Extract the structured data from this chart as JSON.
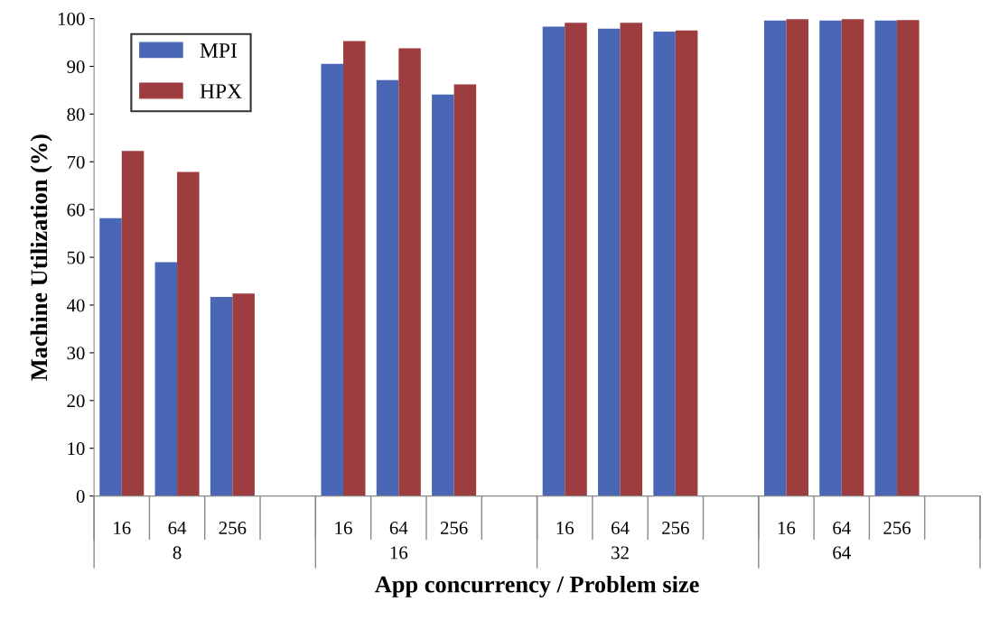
{
  "chart_data": {
    "type": "bar",
    "ylabel": "Machine Utilization (%)",
    "xlabel": "App concurrency / Problem size",
    "categories": [
      "16",
      "64",
      "256",
      null,
      "16",
      "64",
      "256",
      null,
      "16",
      "64",
      "256",
      null,
      "16",
      "64",
      "256",
      null
    ],
    "series": [
      {
        "name": "MPI",
        "color": "#4a67b5",
        "values": [
          58.2,
          49,
          41.7,
          null,
          90.5,
          87.1,
          84.1,
          null,
          98.3,
          97.9,
          97.3,
          null,
          99.6,
          99.6,
          99.6,
          null
        ]
      },
      {
        "name": "HPX",
        "color": "#9e3d3f",
        "values": [
          72.3,
          67.9,
          42.4,
          null,
          95.3,
          93.8,
          86.2,
          null,
          99.1,
          99.1,
          97.5,
          null,
          99.9,
          99.9,
          99.7,
          null
        ]
      }
    ],
    "annotations": [
      "8",
      "16",
      "32",
      "64"
    ],
    "ylim": [
      0,
      100
    ],
    "yticks": [
      0,
      10,
      20,
      30,
      40,
      50,
      60,
      70,
      80,
      90,
      100
    ],
    "grid": false,
    "legend": "top left"
  }
}
